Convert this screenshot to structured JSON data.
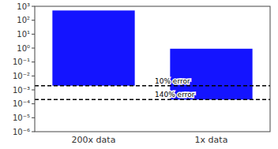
{
  "chart_data": {
    "type": "range_bar",
    "categories": [
      "200x data",
      "1x data"
    ],
    "values": [
      [
        0.002,
        500
      ],
      [
        0.0002,
        0.9
      ]
    ],
    "color": "#1414ff",
    "log": "y",
    "ylim": [
      1e-06,
      1000.0
    ],
    "yticks": [
      {
        "value": 1e-06,
        "label": "10⁻⁶"
      },
      {
        "value": 1e-05,
        "label": "10⁻⁵"
      },
      {
        "value": 0.0001,
        "label": "10⁻⁴"
      },
      {
        "value": 0.001,
        "label": "10⁻³"
      },
      {
        "value": 0.01,
        "label": "10⁻²"
      },
      {
        "value": 0.1,
        "label": "10⁻¹"
      },
      {
        "value": 1,
        "label": "10⁰"
      },
      {
        "value": 10,
        "label": "10¹"
      },
      {
        "value": 100,
        "label": "10²"
      },
      {
        "value": 1000,
        "label": "10³"
      }
    ],
    "lines": [
      {
        "value": 0.002,
        "label": "10% error",
        "color": "black",
        "line_style": "dashed"
      },
      {
        "value": 0.0002,
        "label": "140% error",
        "color": "black",
        "line_style": "dashed"
      }
    ],
    "grid": false
  }
}
